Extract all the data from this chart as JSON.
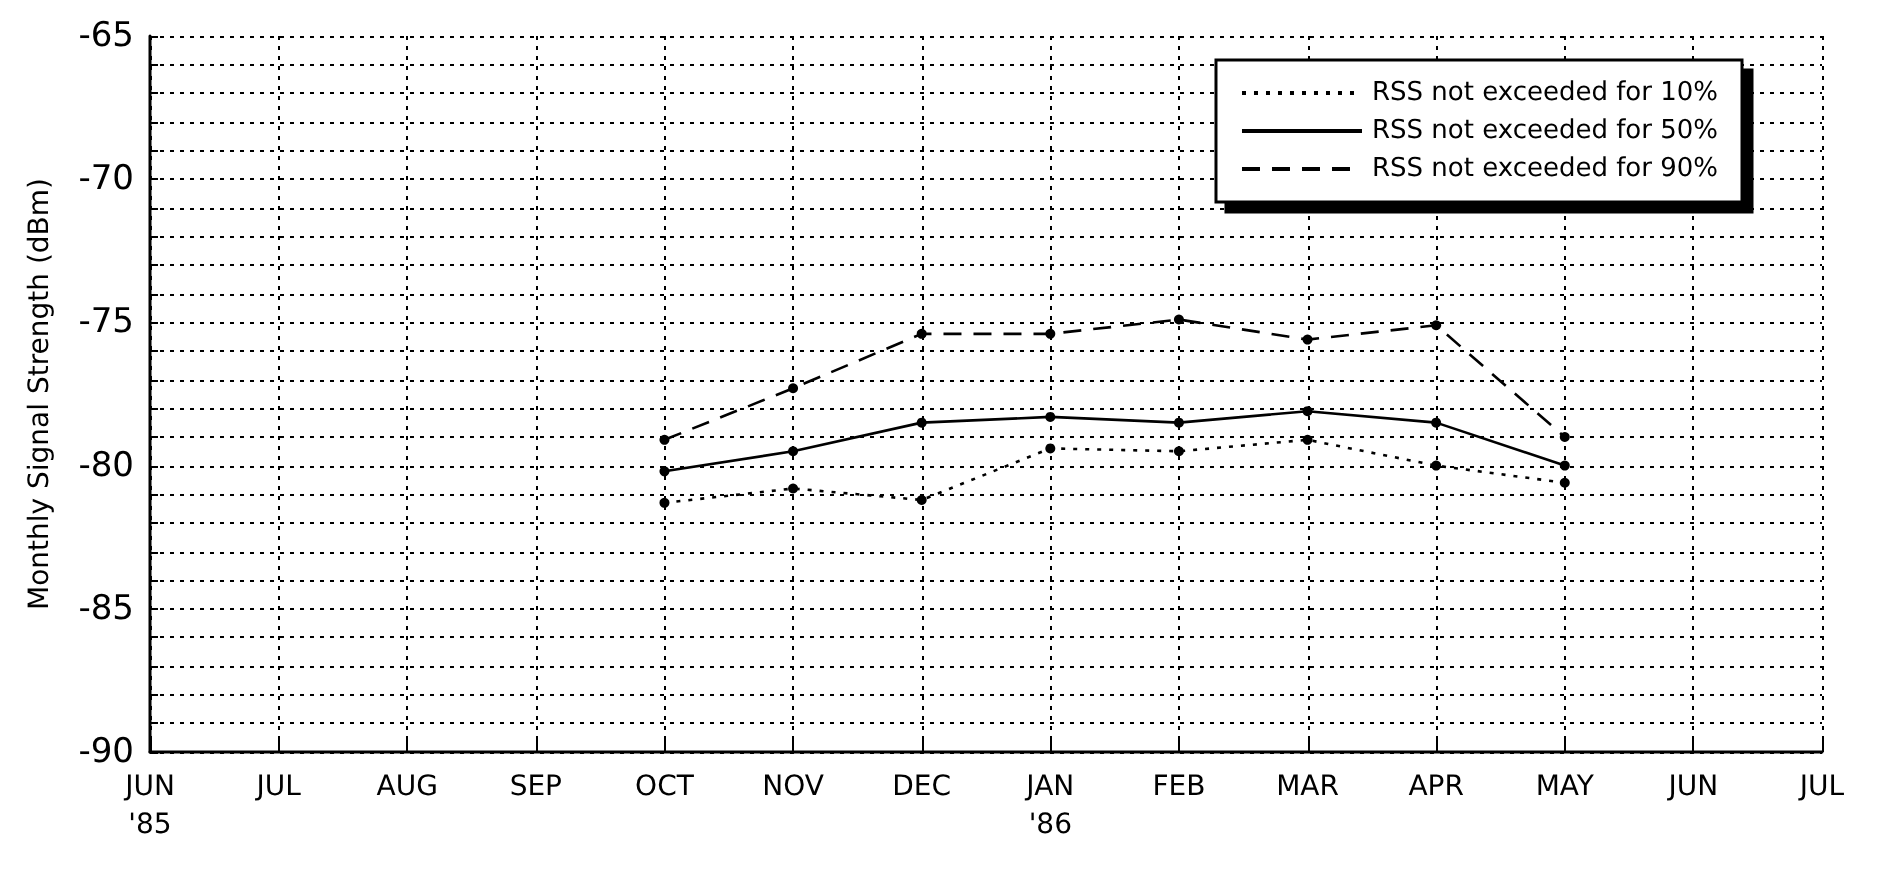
{
  "chart_data": {
    "type": "line",
    "ylabel": "Monthly Signal Strength (dBm)",
    "categories": [
      "JUN\n'85",
      "JUL",
      "AUG",
      "SEP",
      "OCT",
      "NOV",
      "DEC",
      "JAN\n'86",
      "FEB",
      "MAR",
      "APR",
      "MAY",
      "JUN",
      "JUL"
    ],
    "series": [
      {
        "name": "RSS not exceeded for 10%",
        "color": "#000000",
        "line_style": "dotted",
        "values": [
          null,
          null,
          null,
          null,
          -81.3,
          -80.8,
          -81.2,
          -79.4,
          -79.5,
          -79.1,
          -80.0,
          -80.6,
          null,
          null
        ]
      },
      {
        "name": "RSS not exceeded for 50%",
        "color": "#000000",
        "line_style": "solid",
        "values": [
          null,
          null,
          null,
          null,
          -80.2,
          -79.5,
          -78.5,
          -78.3,
          -78.5,
          -78.1,
          -78.5,
          -80.0,
          null,
          null
        ]
      },
      {
        "name": "RSS not exceeded for 90%",
        "color": "#000000",
        "line_style": "dashed",
        "values": [
          null,
          null,
          null,
          null,
          -79.1,
          -77.3,
          -75.4,
          -75.4,
          -74.9,
          -75.6,
          -75.1,
          -79.0,
          null,
          null
        ]
      }
    ],
    "ylim": [
      -90,
      -65
    ],
    "yticks": [
      -90,
      {
        "value": -89,
        "label": null
      },
      {
        "value": -88,
        "label": null
      },
      {
        "value": -87,
        "label": null
      },
      {
        "value": -86,
        "label": null
      },
      -85,
      {
        "value": -84,
        "label": null
      },
      {
        "value": -83,
        "label": null
      },
      {
        "value": -82,
        "label": null
      },
      {
        "value": -81,
        "label": null
      },
      -80,
      {
        "value": -79,
        "label": null
      },
      {
        "value": -78,
        "label": null
      },
      {
        "value": -77,
        "label": null
      },
      {
        "value": -76,
        "label": null
      },
      -75,
      {
        "value": -74,
        "label": null
      },
      {
        "value": -73,
        "label": null
      },
      {
        "value": -72,
        "label": null
      },
      {
        "value": -71,
        "label": null
      },
      -70,
      {
        "value": -69,
        "label": null
      },
      {
        "value": -68,
        "label": null
      },
      {
        "value": -67,
        "label": null
      },
      {
        "value": -66,
        "label": null
      },
      -65
    ],
    "grid": true,
    "legend": "top right",
    "marker": "circle"
  }
}
